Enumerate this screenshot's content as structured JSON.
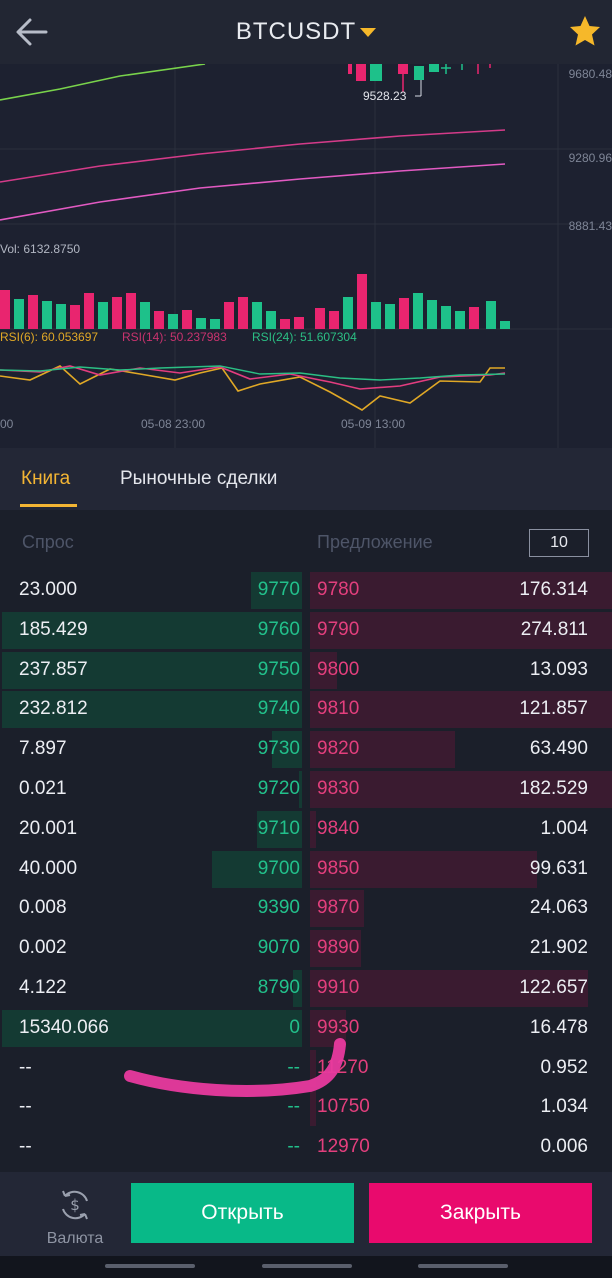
{
  "header": {
    "title": "BTCUSDT",
    "back_icon": "arrow-left-icon",
    "favorite_icon": "star-icon",
    "favorite_color": "#f6b82a"
  },
  "chart": {
    "price_labels": [
      "9680.48",
      "9280.96",
      "8881.43"
    ],
    "candle_low_label": "9528.23",
    "volume_label": "Vol: 6132.8750",
    "rsi6_label": "RSI(6): 60.053697",
    "rsi14_label": "RSI(14): 50.237983",
    "rsi24_label": "RSI(24): 51.607304",
    "time_labels": [
      "00",
      "05-08 23:00",
      "05-09 13:00"
    ]
  },
  "tabs": [
    {
      "label": "Книга",
      "active": true
    },
    {
      "label": "Рыночные сделки",
      "active": false
    }
  ],
  "orderbook": {
    "bid_header": "Спрос",
    "ask_header": "Предложение",
    "depth_value": "10",
    "rows": [
      {
        "bid_amount": "23.000",
        "bid_price": "9770",
        "ask_price": "9780",
        "ask_amount": "176.314",
        "bid_fill": 0.17,
        "ask_fill": 1.0
      },
      {
        "bid_amount": "185.429",
        "bid_price": "9760",
        "ask_price": "9790",
        "ask_amount": "274.811",
        "bid_fill": 1.0,
        "ask_fill": 1.0
      },
      {
        "bid_amount": "237.857",
        "bid_price": "9750",
        "ask_price": "9800",
        "ask_amount": "13.093",
        "bid_fill": 1.0,
        "ask_fill": 0.09
      },
      {
        "bid_amount": "232.812",
        "bid_price": "9740",
        "ask_price": "9810",
        "ask_amount": "121.857",
        "bid_fill": 1.0,
        "ask_fill": 1.0
      },
      {
        "bid_amount": "7.897",
        "bid_price": "9730",
        "ask_price": "9820",
        "ask_amount": "63.490",
        "bid_fill": 0.1,
        "ask_fill": 0.48
      },
      {
        "bid_amount": "0.021",
        "bid_price": "9720",
        "ask_price": "9830",
        "ask_amount": "182.529",
        "bid_fill": 0.01,
        "ask_fill": 1.0
      },
      {
        "bid_amount": "20.001",
        "bid_price": "9710",
        "ask_price": "9840",
        "ask_amount": "1.004",
        "bid_fill": 0.15,
        "ask_fill": 0.02
      },
      {
        "bid_amount": "40.000",
        "bid_price": "9700",
        "ask_price": "9850",
        "ask_amount": "99.631",
        "bid_fill": 0.3,
        "ask_fill": 0.75
      },
      {
        "bid_amount": "0.008",
        "bid_price": "9390",
        "ask_price": "9870",
        "ask_amount": "24.063",
        "bid_fill": 0.0,
        "ask_fill": 0.18
      },
      {
        "bid_amount": "0.002",
        "bid_price": "9070",
        "ask_price": "9890",
        "ask_amount": "21.902",
        "bid_fill": 0.0,
        "ask_fill": 0.17
      },
      {
        "bid_amount": "4.122",
        "bid_price": "8790",
        "ask_price": "9910",
        "ask_amount": "122.657",
        "bid_fill": 0.03,
        "ask_fill": 0.92
      },
      {
        "bid_amount": "15340.066",
        "bid_price": "0",
        "ask_price": "9930",
        "ask_amount": "16.478",
        "bid_fill": 1.0,
        "ask_fill": 0.12
      },
      {
        "bid_amount": "--",
        "bid_price": "--",
        "ask_price": "11270",
        "ask_amount": "0.952",
        "bid_fill": 0.0,
        "ask_fill": 0.02
      },
      {
        "bid_amount": "--",
        "bid_price": "--",
        "ask_price": "10750",
        "ask_amount": "1.034",
        "bid_fill": 0.0,
        "ask_fill": 0.02
      },
      {
        "bid_amount": "--",
        "bid_price": "--",
        "ask_price": "12970",
        "ask_amount": "0.006",
        "bid_fill": 0.0,
        "ask_fill": 0.0
      }
    ]
  },
  "bottom_bar": {
    "currency_label": "Валюта",
    "currency_icon": "dollar-exchange-icon",
    "open_label": "Открыть",
    "close_label": "Закрыть",
    "open_color": "#08b988",
    "close_color": "#e90a6d"
  },
  "colors": {
    "bid_green": "#22c08b",
    "ask_red": "#e33f7d",
    "accent": "#f3b534",
    "annotation_pink": "#e83a9e"
  }
}
